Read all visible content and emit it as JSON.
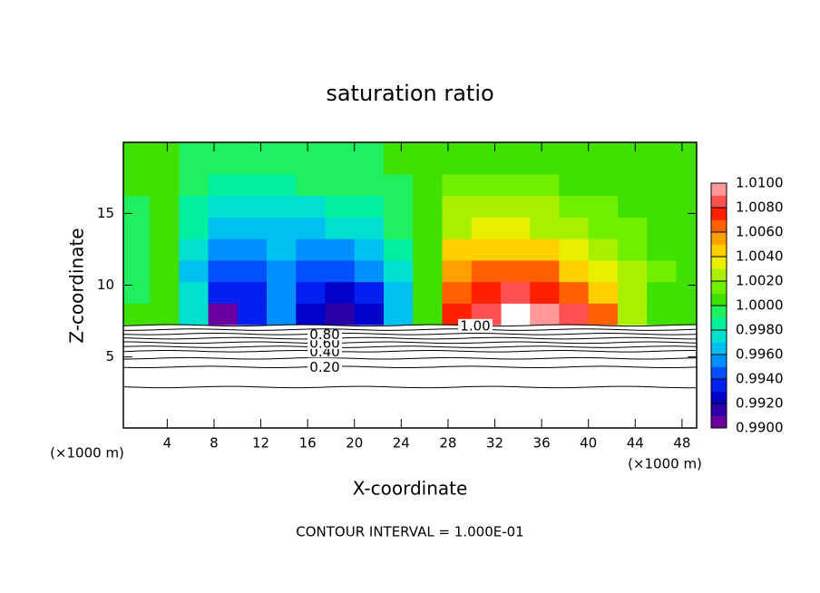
{
  "chart_data": {
    "type": "contour",
    "title": "saturation ratio",
    "x_label": "X-coordinate",
    "y_label": "Z-coordinate",
    "x_unit": "(×1000 m)",
    "y_unit": "(×1000 m)",
    "footer": "CONTOUR INTERVAL = 1.000E-01",
    "xlim": [
      0.25,
      49.25
    ],
    "ylim": [
      0.05,
      19.95
    ],
    "xticks": [
      4,
      8,
      12,
      16,
      20,
      24,
      28,
      32,
      36,
      40,
      44,
      48
    ],
    "yticks": [
      5,
      10,
      15
    ],
    "colorbar": {
      "lim": [
        0.99,
        1.01
      ],
      "ticks": [
        {
          "value": 0.99,
          "label": "0.9900"
        },
        {
          "value": 0.992,
          "label": "0.9920"
        },
        {
          "value": 0.994,
          "label": "0.9940"
        },
        {
          "value": 0.996,
          "label": "0.9960"
        },
        {
          "value": 0.998,
          "label": "0.9980"
        },
        {
          "value": 1.0,
          "label": "1.0000"
        },
        {
          "value": 1.002,
          "label": "1.0020"
        },
        {
          "value": 1.004,
          "label": "1.0040"
        },
        {
          "value": 1.006,
          "label": "1.0060"
        },
        {
          "value": 1.008,
          "label": "1.0080"
        },
        {
          "value": 1.01,
          "label": "1.0100"
        }
      ],
      "colors": [
        "#6a00a0",
        "#2a00a8",
        "#0000c8",
        "#0020f0",
        "#0050ff",
        "#0090ff",
        "#00c0f0",
        "#00e0d0",
        "#00f0a0",
        "#20f060",
        "#40e000",
        "#70f000",
        "#a8f000",
        "#e8f000",
        "#ffd000",
        "#ffa000",
        "#ff6000",
        "#ff2000",
        "#ff5050",
        "#ff9898"
      ]
    },
    "field": {
      "x": [
        1.25,
        3.75,
        6.25,
        8.75,
        11.25,
        13.75,
        16.25,
        18.75,
        21.25,
        23.75,
        26.25,
        28.75,
        31.25,
        33.75,
        36.25,
        38.75,
        41.25,
        43.75,
        46.25,
        48.75
      ],
      "z": [
        8,
        9.5,
        11,
        12.5,
        14,
        15.5,
        17,
        18.5
      ],
      "values": [
        [
          1.0002,
          1.0004,
          0.9975,
          0.9905,
          0.9935,
          0.995,
          0.9925,
          0.9915,
          0.992,
          0.996,
          1.0003,
          1.0075,
          1.0085,
          1.012,
          1.0095,
          1.008,
          1.0068,
          1.003,
          1.0004,
          1.0002
        ],
        [
          0.9998,
          1.0003,
          0.997,
          0.993,
          0.9935,
          0.995,
          0.993,
          0.992,
          0.993,
          0.9965,
          1.0002,
          1.006,
          1.0078,
          1.0082,
          1.0075,
          1.0065,
          1.0045,
          1.003,
          1.001,
          1.0004
        ],
        [
          0.9998,
          1.0003,
          0.9968,
          0.994,
          0.9948,
          0.9955,
          0.9945,
          0.994,
          0.995,
          0.997,
          1.0004,
          1.0055,
          1.007,
          1.007,
          1.006,
          1.0045,
          1.0035,
          1.0025,
          1.0012,
          1.0005
        ],
        [
          0.9998,
          1.0004,
          0.9972,
          0.9955,
          0.9958,
          0.9962,
          0.9955,
          0.9958,
          0.9965,
          0.998,
          1.0006,
          1.004,
          1.005,
          1.005,
          1.0045,
          1.0035,
          1.0025,
          1.0018,
          1.001,
          1.0005
        ],
        [
          0.9999,
          1.0005,
          0.998,
          0.9965,
          0.9965,
          0.9968,
          0.9965,
          0.997,
          0.9978,
          0.999,
          1.0008,
          1.003,
          1.0038,
          1.0036,
          1.003,
          1.0024,
          1.0018,
          1.0014,
          1.0008,
          1.0005
        ],
        [
          0.9999,
          1.0005,
          0.9988,
          0.9972,
          0.9975,
          0.9978,
          0.9978,
          0.9982,
          0.9988,
          0.9995,
          1.0008,
          1.002,
          1.0025,
          1.0024,
          1.002,
          1.0016,
          1.0012,
          1.001,
          1.0007,
          1.0005
        ],
        [
          1.0,
          1.0005,
          0.9994,
          0.9985,
          0.9985,
          0.9988,
          0.999,
          0.9992,
          0.9995,
          0.9998,
          1.0007,
          1.0012,
          1.0015,
          1.0014,
          1.0012,
          1.001,
          1.0008,
          1.0007,
          1.0006,
          1.0005
        ],
        [
          1.0,
          1.0005,
          0.9998,
          0.9992,
          0.9993,
          0.9995,
          0.9996,
          0.9997,
          0.9998,
          1.0,
          1.0006,
          1.0008,
          1.0009,
          1.0009,
          1.0008,
          1.0007,
          1.0006,
          1.0006,
          1.0005,
          1.0005
        ]
      ]
    },
    "contours": [
      {
        "value": 0.1,
        "height": 2.9
      },
      {
        "value": 0.2,
        "label": "0.20",
        "height": 4.3
      },
      {
        "value": 0.3,
        "height": 4.9
      },
      {
        "value": 0.4,
        "label": "0.40",
        "height": 5.4
      },
      {
        "value": 0.5,
        "height": 5.7
      },
      {
        "value": 0.6,
        "label": "0.60",
        "height": 6.0
      },
      {
        "value": 0.7,
        "height": 6.3
      },
      {
        "value": 0.8,
        "label": "0.80",
        "height": 6.6
      },
      {
        "value": 0.9,
        "height": 6.9
      },
      {
        "value": 1.0,
        "label": "1.00",
        "height": 7.2
      }
    ]
  }
}
